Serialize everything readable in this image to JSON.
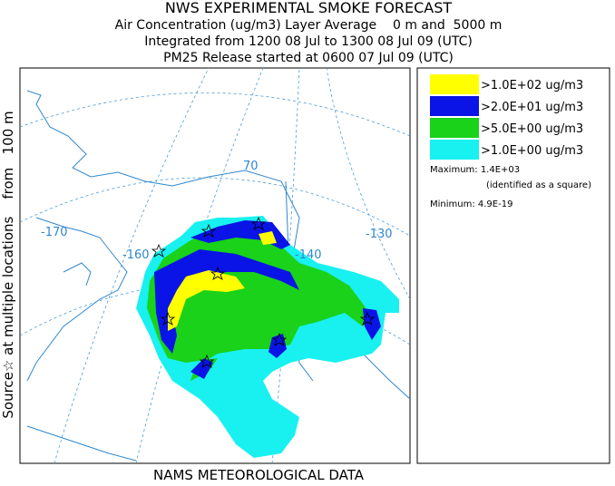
{
  "header": {
    "lines": [
      "NWS EXPERIMENTAL SMOKE FORECAST",
      "Air Concentration (ug/m3) Layer Average    0 m and  5000 m",
      "Integrated from 1200 08 Jul to 1300 08 Jul 09 (UTC)",
      "PM25 Release started at 0600 07 Jul 09 (UTC)"
    ]
  },
  "side_label": "Source☆ at multiple locations    from   100 m",
  "map": {
    "grid_labels": [
      "-170",
      "-160",
      "70",
      "-140",
      "-130"
    ]
  },
  "legend": {
    "entries": [
      {
        "label": ">1.0E+02 ug/m3",
        "color": "#ffff00"
      },
      {
        "label": ">2.0E+01 ug/m3",
        "color": "#0a14e6"
      },
      {
        "label": ">5.0E+00 ug/m3",
        "color": "#19d219"
      },
      {
        "label": ">1.0E+00 ug/m3",
        "color": "#19f0f0"
      }
    ],
    "maximum": "Maximum: 1.4E+03",
    "maximum_note": "(identified as a square)",
    "minimum": "Minimum: 4.9E-19"
  },
  "footer": "NAMS METEOROLOGICAL DATA"
}
